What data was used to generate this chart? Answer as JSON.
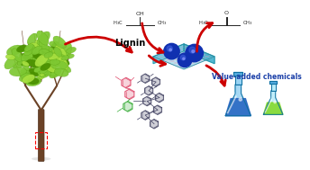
{
  "bg_color": "#ffffff",
  "label_lignin": "Lignin",
  "label_value_added": "Value-added chemicals",
  "tree_trunk_color": "#6b4226",
  "tree_leaf_color": "#7ec832",
  "tree_leaf_dark": "#4a9000",
  "tree_leaf_light": "#a8e040",
  "flask_big_liquid": "#2060c0",
  "flask_big_body": "#80c8f0",
  "flask_small_liquid": "#80d820",
  "flask_small_body": "#a8e8f8",
  "flask_cap_color": "#40a0d8",
  "flask_outline": "#2080b0",
  "catalyst_top": "#b0e0f0",
  "catalyst_grid": "#e0a0c0",
  "catalyst_side_left": "#60c8e0",
  "catalyst_side_right": "#40b0cc",
  "sphere_color": "#1030b0",
  "sphere_highlight": "#4060e0",
  "arrow_color": "#cc0000",
  "lignin_pink": "#e05070",
  "lignin_green": "#40b040",
  "lignin_dark": "#404060",
  "structure_color": "#222222"
}
